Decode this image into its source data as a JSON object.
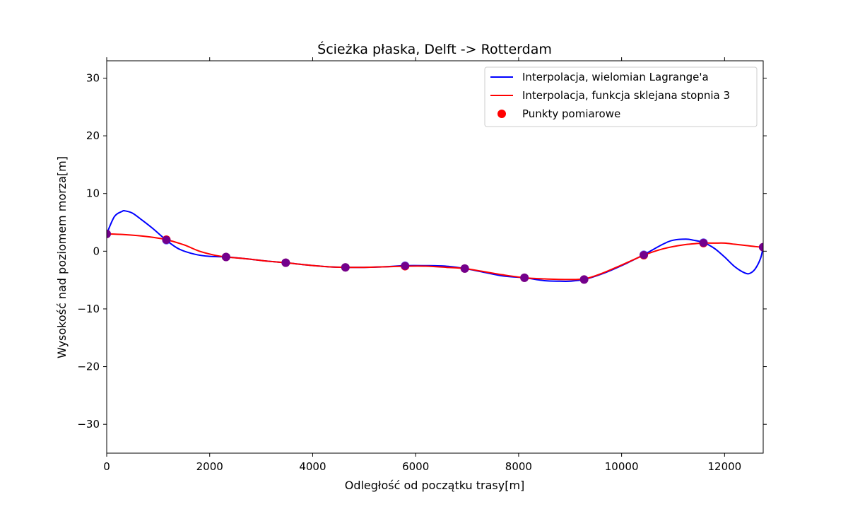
{
  "chart_data": {
    "type": "line",
    "title": "Ścieżka płaska, Delft -> Rotterdam",
    "xlabel": "Odległość od początku trasy[m]",
    "ylabel": "Wysokość nad poziomem morza[m]",
    "xlim": [
      0,
      12750
    ],
    "ylim": [
      -35,
      33
    ],
    "x_ticks": [
      0,
      2000,
      4000,
      6000,
      8000,
      10000,
      12000
    ],
    "y_ticks": [
      -30,
      -20,
      -10,
      0,
      10,
      20,
      30
    ],
    "x_tick_labels": [
      "0",
      "2000",
      "4000",
      "6000",
      "8000",
      "10000",
      "12000"
    ],
    "y_tick_labels": [
      "−30",
      "−20",
      "−10",
      "0",
      "10",
      "20",
      "30"
    ],
    "grid": false,
    "legend_position": "top-right",
    "series": [
      {
        "name": "Interpolacja, wielomian Lagrange'a",
        "kind": "line",
        "color": "#0000ff",
        "x": [
          0,
          150,
          300,
          350,
          500,
          700,
          900,
          1159,
          1400,
          1700,
          2000,
          2318,
          2700,
          3100,
          3477,
          3900,
          4300,
          4636,
          5000,
          5400,
          5795,
          6200,
          6600,
          6954,
          7300,
          7700,
          8113,
          8500,
          8800,
          9000,
          9272,
          9600,
          10000,
          10431,
          10800,
          11000,
          11250,
          11400,
          11590,
          11800,
          12000,
          12200,
          12400,
          12500,
          12600,
          12700,
          12749
        ],
        "y": [
          3.0,
          6.0,
          6.9,
          7.0,
          6.6,
          5.3,
          3.9,
          1.9,
          0.4,
          -0.5,
          -0.9,
          -1.0,
          -1.3,
          -1.7,
          -2.0,
          -2.4,
          -2.7,
          -2.8,
          -2.8,
          -2.7,
          -2.5,
          -2.5,
          -2.6,
          -3.0,
          -3.6,
          -4.3,
          -4.6,
          -5.1,
          -5.2,
          -5.2,
          -4.9,
          -4.0,
          -2.5,
          -0.6,
          1.2,
          1.9,
          2.1,
          1.9,
          1.5,
          0.5,
          -1.0,
          -2.7,
          -3.8,
          -3.8,
          -3.0,
          -1.2,
          0.7
        ]
      },
      {
        "name": "Interpolacja, funkcja sklejana stopnia 3",
        "kind": "line",
        "color": "#ff0000",
        "x": [
          0,
          300,
          600,
          900,
          1159,
          1500,
          1800,
          2100,
          2318,
          2700,
          3100,
          3477,
          3900,
          4300,
          4636,
          5000,
          5400,
          5795,
          6200,
          6600,
          6954,
          7300,
          7700,
          8113,
          8500,
          8900,
          9272,
          9600,
          10000,
          10431,
          10800,
          11200,
          11590,
          11800,
          12000,
          12200,
          12400,
          12600,
          12749
        ],
        "y": [
          3.0,
          2.9,
          2.7,
          2.4,
          2.0,
          1.1,
          0.0,
          -0.7,
          -1.0,
          -1.3,
          -1.7,
          -2.0,
          -2.4,
          -2.7,
          -2.8,
          -2.8,
          -2.7,
          -2.6,
          -2.6,
          -2.8,
          -3.0,
          -3.5,
          -4.1,
          -4.6,
          -4.8,
          -4.9,
          -4.8,
          -3.9,
          -2.4,
          -0.7,
          0.4,
          1.1,
          1.4,
          1.4,
          1.4,
          1.2,
          1.0,
          0.8,
          0.7
        ]
      },
      {
        "name": "Punkty pomiarowe",
        "kind": "scatter",
        "color": "#ff0000",
        "x": [
          0,
          1159,
          2318,
          3477,
          4636,
          5795,
          6954,
          8113,
          9272,
          10431,
          11590,
          12749
        ],
        "y": [
          3.0,
          2.0,
          -1.0,
          -2.0,
          -2.8,
          -2.6,
          -3.0,
          -4.6,
          -4.9,
          -0.7,
          1.4,
          0.7
        ]
      }
    ]
  }
}
